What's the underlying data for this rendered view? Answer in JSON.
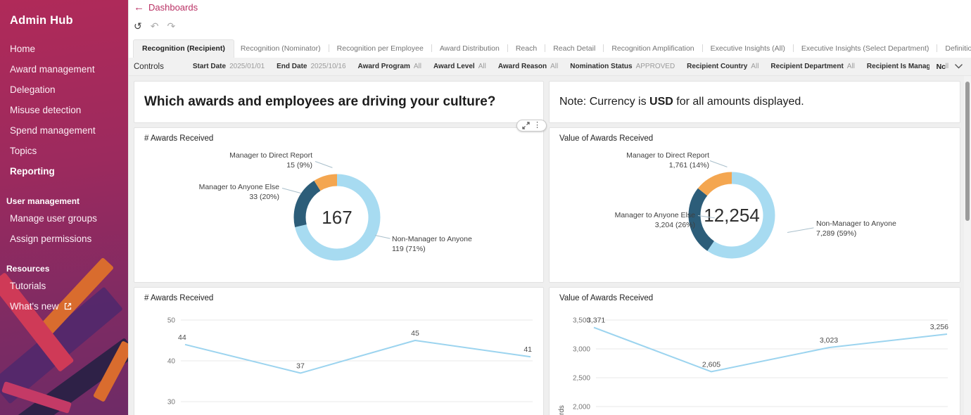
{
  "app": {
    "title": "Admin Hub"
  },
  "sidebar": {
    "items": [
      {
        "label": "Home"
      },
      {
        "label": "Award management"
      },
      {
        "label": "Delegation"
      },
      {
        "label": "Misuse detection"
      },
      {
        "label": "Spend management"
      },
      {
        "label": "Topics"
      },
      {
        "label": "Reporting"
      }
    ],
    "sections": [
      {
        "heading": "User management",
        "items": [
          {
            "label": "Manage user groups"
          },
          {
            "label": "Assign permissions"
          }
        ]
      },
      {
        "heading": "Resources",
        "items": [
          {
            "label": "Tutorials"
          },
          {
            "label": "What's new"
          }
        ]
      }
    ]
  },
  "header": {
    "back_label": "Dashboards",
    "tabs": [
      "Recognition (Recipient)",
      "Recognition (Nominator)",
      "Recognition per Employee",
      "Award Distribution",
      "Reach",
      "Reach Detail",
      "Recognition Amplification",
      "Executive Insights (All)",
      "Executive Insights (Select Department)",
      "Definitions"
    ]
  },
  "controls": {
    "label": "Controls",
    "filters": [
      {
        "name": "Start Date",
        "value": "2025/01/01"
      },
      {
        "name": "End Date",
        "value": "2025/10/16"
      },
      {
        "name": "Award Program",
        "value": "All"
      },
      {
        "name": "Award Level",
        "value": "All"
      },
      {
        "name": "Award Reason",
        "value": "All"
      },
      {
        "name": "Nomination Status",
        "value": "APPROVED"
      },
      {
        "name": "Recipient Country",
        "value": "All"
      },
      {
        "name": "Recipient Department",
        "value": "All"
      },
      {
        "name": "Recipient Is Manager",
        "value": "All"
      }
    ],
    "truncated_filter": "Nc"
  },
  "banners": {
    "headline": "Which awards and employees are driving your culture?",
    "note_prefix": "Note: Currency is ",
    "note_currency": "USD",
    "note_suffix": " for all amounts displayed."
  },
  "chart_data": [
    {
      "type": "donut",
      "title": "# Awards Received",
      "center_total": "167",
      "segments": [
        {
          "label": "Non-Manager to Anyone",
          "value": 119,
          "value_text": "119 (71%)",
          "color": "#A7DBF1"
        },
        {
          "label": "Manager to Anyone Else",
          "value": 33,
          "value_text": "33 (20%)",
          "color": "#2C5D79"
        },
        {
          "label": "Manager to Direct Report",
          "value": 15,
          "value_text": "15 (9%)",
          "color": "#F4A650"
        }
      ]
    },
    {
      "type": "donut",
      "title": "Value of Awards Received",
      "center_total": "12,254",
      "segments": [
        {
          "label": "Non-Manager to Anyone",
          "value": 7289,
          "value_text": "7,289 (59%)",
          "color": "#A7DBF1"
        },
        {
          "label": "Manager to Anyone Else",
          "value": 3204,
          "value_text": "3,204 (26%)",
          "color": "#2C5D79"
        },
        {
          "label": "Manager to Direct Report",
          "value": 1761,
          "value_text": "1,761 (14%)",
          "color": "#F4A650"
        }
      ]
    },
    {
      "type": "line",
      "title": "# Awards Received",
      "values": [
        44,
        37,
        45,
        41
      ],
      "point_labels": [
        "44",
        "37",
        "45",
        "41"
      ],
      "y_ticks": [
        {
          "v": 50,
          "label": "50"
        },
        {
          "v": 40,
          "label": "40"
        },
        {
          "v": 30,
          "label": "30"
        }
      ],
      "line_color": "#9CD4EF",
      "grid": true
    },
    {
      "type": "line",
      "title": "Value of Awards Received",
      "values": [
        3371,
        2605,
        3023,
        3256
      ],
      "point_labels": [
        "3,371",
        "2,605",
        "3,023",
        "3,256"
      ],
      "y_ticks": [
        {
          "v": 3500,
          "label": "3,500"
        },
        {
          "v": 3000,
          "label": "3,000"
        },
        {
          "v": 2500,
          "label": "2,500"
        },
        {
          "v": 2000,
          "label": "2,000"
        }
      ],
      "line_color": "#9CD4EF",
      "grid": true,
      "y_axis_label_visible": "rds"
    }
  ]
}
